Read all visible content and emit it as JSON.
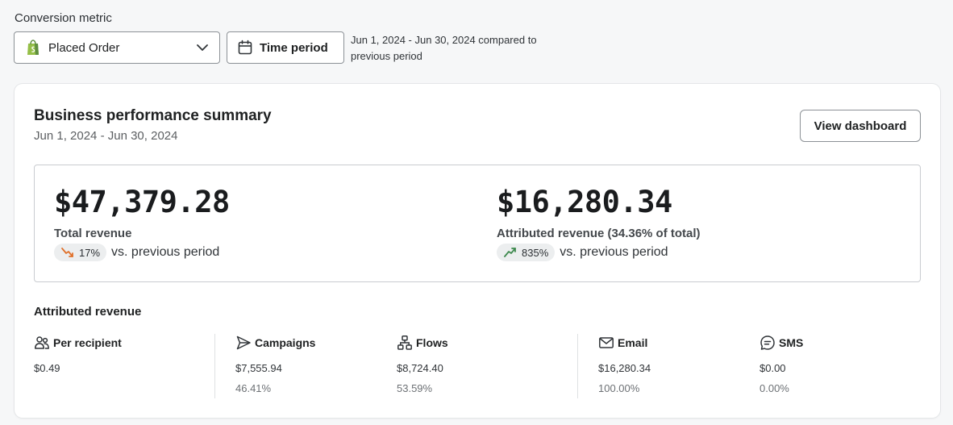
{
  "filters": {
    "conversion_label": "Conversion metric",
    "metric_select": "Placed Order",
    "time_button": "Time period",
    "range_note": "Jun 1, 2024 - Jun 30, 2024 compared to previous period"
  },
  "card": {
    "title": "Business performance summary",
    "date_range": "Jun 1, 2024 - Jun 30, 2024",
    "view_button": "View dashboard"
  },
  "summary": {
    "total": {
      "value": "$47,379.28",
      "label": "Total revenue",
      "delta": "17%",
      "delta_direction": "down",
      "delta_suffix": "vs. previous period"
    },
    "attributed": {
      "value": "$16,280.34",
      "label": "Attributed revenue (34.36% of total)",
      "delta": "835%",
      "delta_direction": "up",
      "delta_suffix": "vs. previous period"
    }
  },
  "attributed_revenue": {
    "heading": "Attributed revenue",
    "stats": [
      {
        "title": "Per recipient",
        "icon": "people-icon",
        "value": "$0.49",
        "pct": ""
      },
      {
        "title": "Campaigns",
        "icon": "send-icon",
        "value": "$7,555.94",
        "pct": "46.41%"
      },
      {
        "title": "Flows",
        "icon": "flow-icon",
        "value": "$8,724.40",
        "pct": "53.59%"
      },
      {
        "title": "Email",
        "icon": "mail-icon",
        "value": "$16,280.34",
        "pct": "100.00%"
      },
      {
        "title": "SMS",
        "icon": "sms-icon",
        "value": "$0.00",
        "pct": "0.00%"
      }
    ]
  },
  "colors": {
    "trend_down": "#e0702a",
    "trend_up": "#3f8a4f",
    "shopify_green": "#95bf47"
  }
}
